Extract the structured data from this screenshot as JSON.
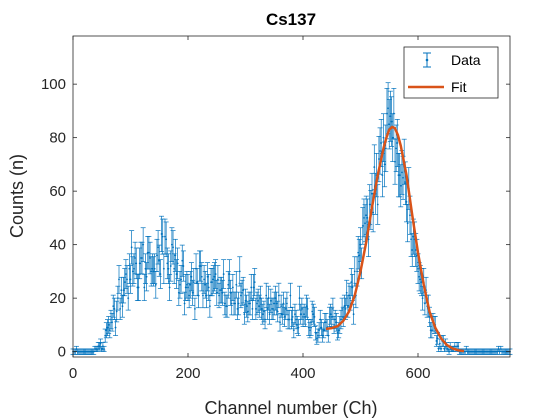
{
  "chart_data": {
    "type": "scatter",
    "title": "Cs137",
    "xlabel": "Channel number (Ch)",
    "ylabel": "Counts (n)",
    "xlim": [
      0,
      760
    ],
    "ylim": [
      -2,
      118
    ],
    "x_ticks": [
      0,
      200,
      400,
      600
    ],
    "y_ticks": [
      0,
      20,
      40,
      60,
      80,
      100
    ],
    "x_tick_labels": [
      "0",
      "200",
      "400",
      "600"
    ],
    "y_tick_labels": [
      "0",
      "20",
      "40",
      "60",
      "80",
      "100"
    ],
    "grid": false,
    "legend": {
      "placement": "top-right",
      "entries": [
        "Data",
        "Fit"
      ]
    },
    "series": [
      {
        "name": "Data",
        "kind": "errorbar",
        "color": "#0072BD",
        "x_range": [
          0,
          760
        ],
        "x_step": 2,
        "description_points": [
          [
            0,
            0
          ],
          [
            20,
            0
          ],
          [
            40,
            0.5
          ],
          [
            55,
            3
          ],
          [
            65,
            10
          ],
          [
            75,
            20
          ],
          [
            90,
            27
          ],
          [
            110,
            30
          ],
          [
            130,
            33
          ],
          [
            145,
            36
          ],
          [
            160,
            35
          ],
          [
            180,
            30
          ],
          [
            200,
            27
          ],
          [
            230,
            24
          ],
          [
            260,
            22
          ],
          [
            290,
            20
          ],
          [
            320,
            18
          ],
          [
            350,
            15
          ],
          [
            380,
            14
          ],
          [
            410,
            12
          ],
          [
            430,
            10
          ],
          [
            450,
            10
          ],
          [
            470,
            14
          ],
          [
            490,
            25
          ],
          [
            510,
            45
          ],
          [
            530,
            68
          ],
          [
            545,
            80
          ],
          [
            555,
            82
          ],
          [
            565,
            76
          ],
          [
            580,
            58
          ],
          [
            600,
            32
          ],
          [
            620,
            13
          ],
          [
            640,
            4
          ],
          [
            660,
            1
          ],
          [
            680,
            0.3
          ],
          [
            700,
            0
          ],
          [
            760,
            0
          ]
        ]
      },
      {
        "name": "Fit",
        "kind": "line",
        "color": "#D95319",
        "x": [
          440,
          450,
          460,
          470,
          480,
          490,
          500,
          510,
          520,
          530,
          540,
          545,
          550,
          555,
          560,
          565,
          570,
          580,
          590,
          600,
          610,
          620,
          630,
          640,
          650,
          660,
          670,
          680
        ],
        "y": [
          8.5,
          8.8,
          9.5,
          11.5,
          15,
          21,
          30,
          41,
          54,
          66,
          76,
          80,
          83,
          84,
          83.5,
          81,
          77,
          66,
          51,
          37,
          25,
          15,
          9,
          5,
          2.5,
          1.2,
          0.5,
          0.2
        ]
      }
    ]
  }
}
